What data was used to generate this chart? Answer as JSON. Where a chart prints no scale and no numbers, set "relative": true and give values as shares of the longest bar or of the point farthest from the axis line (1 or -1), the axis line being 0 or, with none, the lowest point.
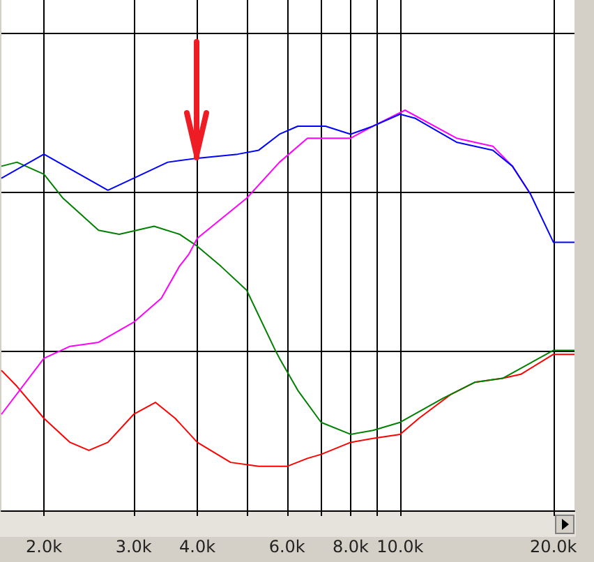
{
  "chart_data": {
    "type": "line",
    "relative": true,
    "log": "x",
    "grid": true,
    "marker": "none",
    "line_style": "solid",
    "xlim": [
      1650,
      22000
    ],
    "xticks": [
      {
        "value": 2000,
        "label": "2.0k"
      },
      {
        "value": 3000,
        "label": "3.0k"
      },
      {
        "value": 4000,
        "label": "4.0k"
      },
      {
        "value": 5000,
        "label": null
      },
      {
        "value": 6000,
        "label": "6.0k"
      },
      {
        "value": 7000,
        "label": null
      },
      {
        "value": 8000,
        "label": "8.0k"
      },
      {
        "value": 9000,
        "label": null
      },
      {
        "value": 10000,
        "label": "10.0k"
      },
      {
        "value": 20000,
        "label": "20.0k"
      }
    ],
    "series": [
      {
        "color": "#0000ff",
        "x": [
          1650,
          2000,
          2670,
          3000,
          3500,
          4000,
          4800,
          5280,
          5800,
          6300,
          6580,
          7140,
          8000,
          8850,
          10000,
          10690,
          12910,
          15210,
          16620,
          18040,
          20000,
          22000
        ],
        "values": [
          0.83,
          0.89,
          0.8,
          0.83,
          0.87,
          0.88,
          0.89,
          0.9,
          0.94,
          0.96,
          0.96,
          0.96,
          0.94,
          0.96,
          0.99,
          0.98,
          0.92,
          0.9,
          0.86,
          0.79,
          0.67,
          0.67
        ]
      },
      {
        "color": "#ff00ff",
        "x": [
          1650,
          2000,
          2250,
          2560,
          3000,
          3400,
          3690,
          3850,
          4000,
          5000,
          5800,
          6580,
          8000,
          8850,
          10230,
          12910,
          15210,
          16620,
          18040
        ],
        "values": [
          0.24,
          0.38,
          0.41,
          0.42,
          0.47,
          0.53,
          0.61,
          0.64,
          0.68,
          0.78,
          0.87,
          0.93,
          0.93,
          0.96,
          1.0,
          0.93,
          0.91,
          0.86,
          0.79
        ]
      },
      {
        "color": "#008000",
        "x": [
          1650,
          1770,
          2000,
          2180,
          2560,
          2810,
          3290,
          3690,
          4000,
          4450,
          5000,
          5690,
          5800,
          6300,
          7000,
          8000,
          8850,
          10000,
          12130,
          14010,
          15900,
          20000,
          22000
        ],
        "values": [
          0.86,
          0.87,
          0.84,
          0.78,
          0.7,
          0.69,
          0.71,
          0.69,
          0.66,
          0.61,
          0.55,
          0.4,
          0.38,
          0.3,
          0.22,
          0.19,
          0.2,
          0.22,
          0.28,
          0.32,
          0.33,
          0.4,
          0.4
        ]
      },
      {
        "color": "#ff0000",
        "x": [
          1650,
          1770,
          2000,
          2250,
          2450,
          2670,
          3000,
          3310,
          3620,
          4000,
          4650,
          5280,
          6000,
          6580,
          7000,
          8000,
          8850,
          10000,
          10890,
          12590,
          14010,
          15900,
          17260,
          20000,
          22000
        ],
        "values": [
          0.35,
          0.31,
          0.23,
          0.17,
          0.15,
          0.17,
          0.24,
          0.27,
          0.23,
          0.17,
          0.12,
          0.11,
          0.11,
          0.13,
          0.14,
          0.17,
          0.18,
          0.19,
          0.23,
          0.29,
          0.32,
          0.33,
          0.34,
          0.39,
          0.39
        ]
      }
    ]
  }
}
